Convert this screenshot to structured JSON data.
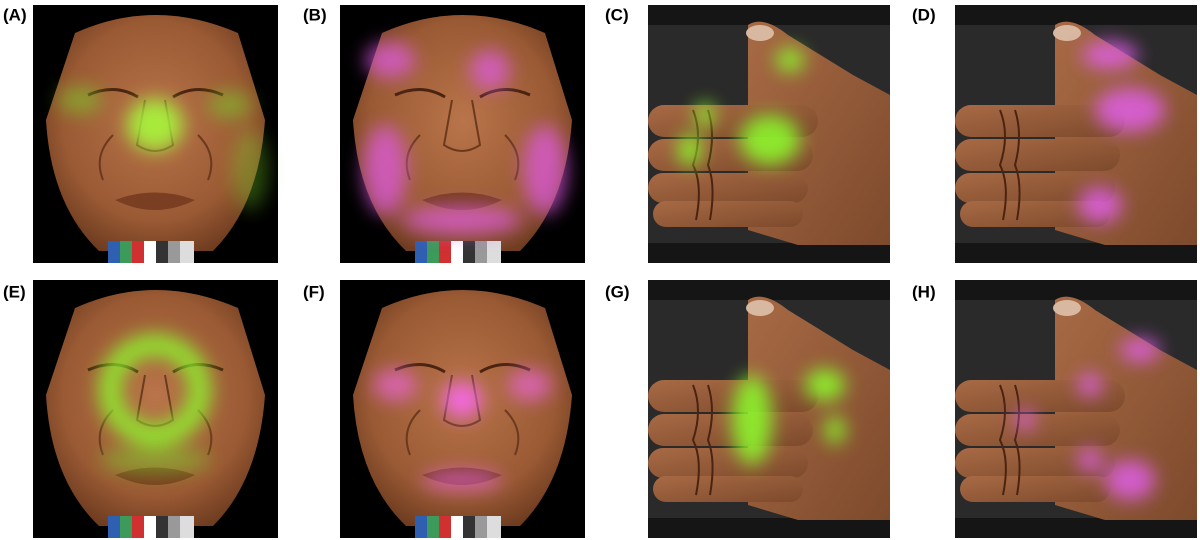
{
  "panels": [
    {
      "label": "(A)"
    },
    {
      "label": "(B)"
    },
    {
      "label": "(C)"
    },
    {
      "label": "(D)"
    },
    {
      "label": "(E)"
    },
    {
      "label": "(F)"
    },
    {
      "label": "(G)"
    },
    {
      "label": "(H)"
    }
  ]
}
